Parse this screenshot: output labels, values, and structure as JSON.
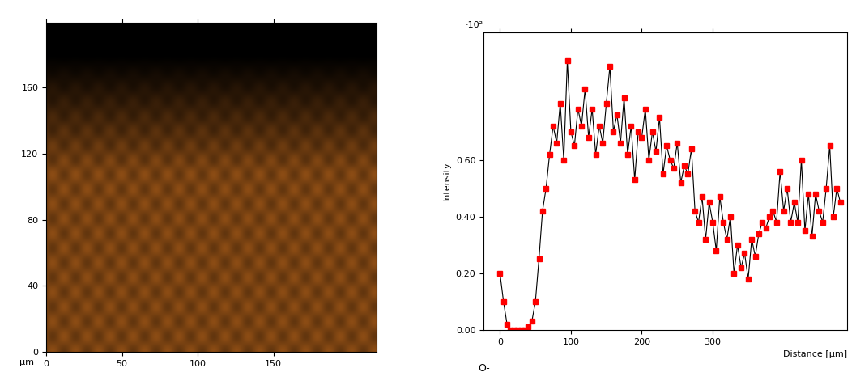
{
  "chart_data": [
    {
      "type": "image",
      "xlabel": "µm",
      "xlim": [
        0,
        218
      ],
      "ylim": [
        0,
        199
      ],
      "xticks": [
        0,
        50,
        100,
        150
      ],
      "yticks": [
        0,
        40,
        80,
        120,
        160
      ]
    },
    {
      "type": "line",
      "ylabel": "Intensity",
      "xlabel": "Distance [µm]",
      "annotations": [
        "·10²",
        "O-"
      ],
      "xlim": [
        -23,
        490
      ],
      "ylim": [
        0,
        1.05
      ],
      "xticks": [
        0,
        100,
        200,
        300
      ],
      "yticks": [
        {
          "value": 0,
          "label": "0.00"
        },
        {
          "value": 0.2,
          "label": "0.20"
        },
        {
          "value": 0.4,
          "label": "0.40"
        },
        {
          "value": 0.6,
          "label": "0.60"
        }
      ],
      "x": [
        0,
        5,
        10,
        15,
        20,
        25,
        30,
        35,
        40,
        45,
        50,
        55,
        60,
        65,
        70,
        75,
        80,
        85,
        90,
        95,
        100,
        105,
        110,
        115,
        120,
        125,
        130,
        135,
        140,
        145,
        150,
        155,
        160,
        165,
        170,
        175,
        180,
        185,
        190,
        195,
        200,
        205,
        210,
        215,
        220,
        225,
        230,
        235,
        240,
        245,
        250,
        255,
        260,
        265,
        270,
        275,
        280,
        285,
        290,
        295,
        300,
        305,
        310,
        315,
        320,
        325,
        330,
        335,
        340,
        345,
        350,
        355,
        360,
        365,
        370,
        375,
        380,
        385,
        390,
        395,
        400,
        405,
        410,
        415,
        420,
        425,
        430,
        435,
        440,
        445,
        450,
        455,
        460,
        465,
        470,
        475,
        480
      ],
      "series": [
        {
          "color": "#ff0000",
          "marker": "square",
          "line_style": "solid",
          "values": [
            0.2,
            0.1,
            0.02,
            0.0,
            0.0,
            0.0,
            0.0,
            0.0,
            0.01,
            0.03,
            0.1,
            0.25,
            0.42,
            0.5,
            0.62,
            0.72,
            0.66,
            0.8,
            0.6,
            0.95,
            0.7,
            0.65,
            0.78,
            0.72,
            0.85,
            0.68,
            0.78,
            0.62,
            0.72,
            0.66,
            0.8,
            0.93,
            0.7,
            0.76,
            0.66,
            0.82,
            0.62,
            0.72,
            0.53,
            0.7,
            0.68,
            0.78,
            0.6,
            0.7,
            0.63,
            0.75,
            0.55,
            0.65,
            0.6,
            0.57,
            0.66,
            0.52,
            0.58,
            0.55,
            0.64,
            0.42,
            0.38,
            0.47,
            0.32,
            0.45,
            0.38,
            0.28,
            0.47,
            0.38,
            0.32,
            0.4,
            0.2,
            0.3,
            0.22,
            0.27,
            0.18,
            0.32,
            0.26,
            0.34,
            0.38,
            0.36,
            0.4,
            0.42,
            0.38,
            0.56,
            0.42,
            0.5,
            0.38,
            0.45,
            0.38,
            0.6,
            0.35,
            0.48,
            0.33,
            0.48,
            0.42,
            0.38,
            0.5,
            0.65,
            0.4,
            0.5,
            0.45
          ]
        }
      ]
    }
  ]
}
